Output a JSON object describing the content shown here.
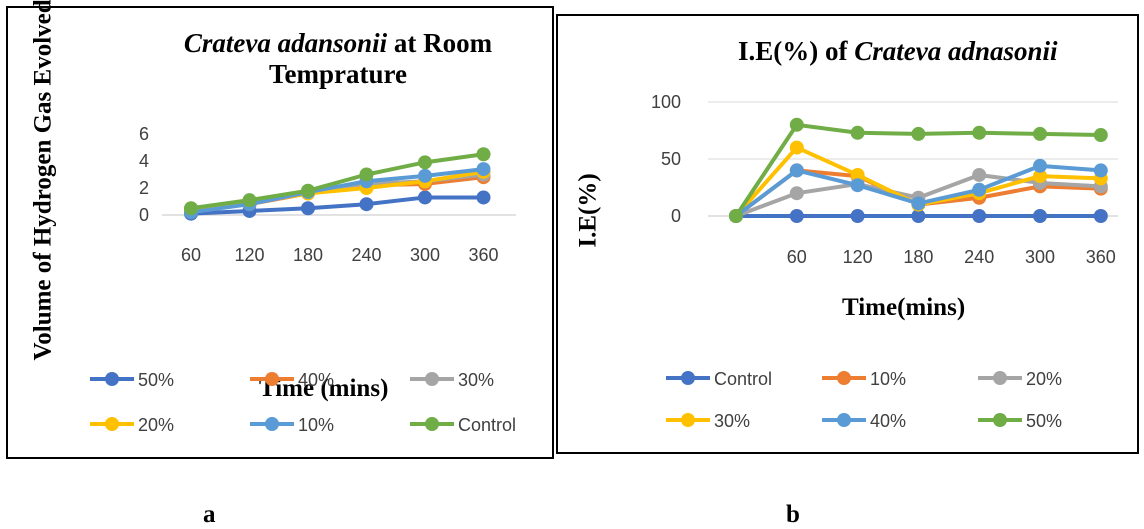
{
  "chart_data": [
    {
      "type": "line",
      "title_italic": "Crateva adansonii",
      "title_rest": " at Room Temprature",
      "xlabel": "Time (mins)",
      "ylabel": "Volume of Hydrogen Gas Evolved (ml)",
      "categories": [
        "60",
        "120",
        "180",
        "240",
        "300",
        "360"
      ],
      "y_ticks": [
        "0",
        "2",
        "4",
        "6"
      ],
      "ylim": [
        0,
        6
      ],
      "grid": false,
      "legend_position": "bottom",
      "series": [
        {
          "name": "50%",
          "color": "#4472C4",
          "values": [
            0.1,
            0.3,
            0.5,
            0.8,
            1.3,
            1.3
          ]
        },
        {
          "name": "40%",
          "color": "#ED7D31",
          "values": [
            0.3,
            0.8,
            1.6,
            2.2,
            2.3,
            2.8
          ]
        },
        {
          "name": "30%",
          "color": "#A5A5A5",
          "values": [
            0.3,
            0.8,
            1.7,
            2.3,
            2.5,
            3.0
          ]
        },
        {
          "name": "20%",
          "color": "#FFC000",
          "values": [
            0.3,
            0.9,
            1.6,
            2.0,
            2.5,
            3.2
          ]
        },
        {
          "name": "10%",
          "color": "#5B9BD5",
          "values": [
            0.2,
            0.8,
            1.7,
            2.5,
            2.9,
            3.4
          ]
        },
        {
          "name": "Control",
          "color": "#70AD47",
          "values": [
            0.5,
            1.1,
            1.8,
            3.0,
            3.9,
            4.5
          ]
        }
      ]
    },
    {
      "type": "line",
      "title_prefix": "I.E(%) of ",
      "title_italic": "Crateva adnasonii",
      "xlabel": "Time(mins)",
      "ylabel": "I.E(%)",
      "categories": [
        "",
        "60",
        "120",
        "180",
        "240",
        "300",
        "360"
      ],
      "y_ticks": [
        "0",
        "50",
        "100"
      ],
      "ylim": [
        0,
        100
      ],
      "grid": true,
      "legend_position": "bottom",
      "series": [
        {
          "name": "Control",
          "color": "#4472C4",
          "values": [
            0,
            0,
            0,
            0,
            0,
            0,
            0
          ]
        },
        {
          "name": "10%",
          "color": "#ED7D31",
          "values": [
            0,
            40,
            35,
            10,
            16,
            26,
            24
          ]
        },
        {
          "name": "20%",
          "color": "#A5A5A5",
          "values": [
            0,
            20,
            28,
            16,
            36,
            29,
            26
          ]
        },
        {
          "name": "30%",
          "color": "#FFC000",
          "values": [
            0,
            60,
            36,
            10,
            20,
            35,
            33
          ]
        },
        {
          "name": "40%",
          "color": "#5B9BD5",
          "values": [
            0,
            40,
            27,
            11,
            23,
            44,
            40
          ]
        },
        {
          "name": "50%",
          "color": "#70AD47",
          "values": [
            0,
            80,
            73,
            72,
            73,
            72,
            71
          ]
        }
      ]
    }
  ],
  "captions": {
    "a": "a",
    "b": "b"
  }
}
